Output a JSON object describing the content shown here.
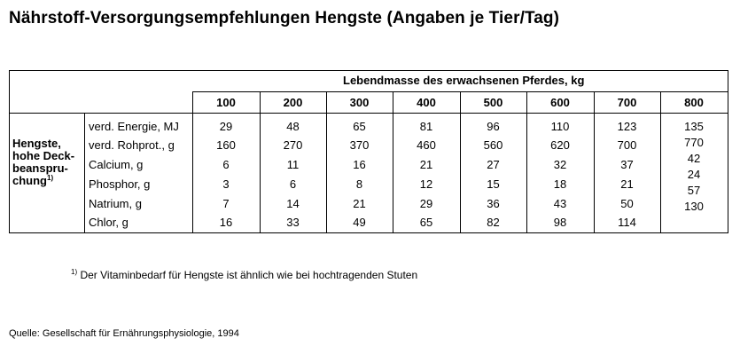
{
  "title": "Nährstoff-Versorgungsempfehlungen Hengste (Angaben je Tier/Tag)",
  "table": {
    "super_header": "Lebendmasse des erwachsenen Pferdes, kg",
    "columns": [
      "100",
      "200",
      "300",
      "400",
      "500",
      "600",
      "700",
      "800"
    ],
    "group": {
      "label_lines": [
        "Hengste,",
        "hohe Deck-",
        "beanspru-",
        "chung"
      ],
      "footnote_mark": "1)"
    },
    "rows": [
      {
        "label": "verd. Energie, MJ",
        "values": [
          "29",
          "48",
          "65",
          "81",
          "96",
          "110",
          "123"
        ]
      },
      {
        "label": "verd. Rohprot., g",
        "values": [
          "160",
          "270",
          "370",
          "460",
          "560",
          "620",
          "700"
        ]
      },
      {
        "label": "Calcium, g",
        "values": [
          "6",
          "11",
          "16",
          "21",
          "27",
          "32",
          "37"
        ]
      },
      {
        "label": "Phosphor, g",
        "values": [
          "3",
          "6",
          "8",
          "12",
          "15",
          "18",
          "21"
        ]
      },
      {
        "label": "Natrium, g",
        "values": [
          "7",
          "14",
          "21",
          "29",
          "36",
          "43",
          "50"
        ]
      },
      {
        "label": "Chlor, g",
        "values": [
          "16",
          "33",
          "49",
          "65",
          "82",
          "98",
          "114"
        ]
      }
    ],
    "col800_values": [
      "135",
      "770",
      "42",
      "24",
      "57",
      "130"
    ]
  },
  "footnote": {
    "mark": "1)",
    "text": "Der Vitaminbedarf für Hengste ist ähnlich wie bei hochtragenden Stuten"
  },
  "source": "Quelle: Gesellschaft für Ernährungsphysiologie, 1994"
}
